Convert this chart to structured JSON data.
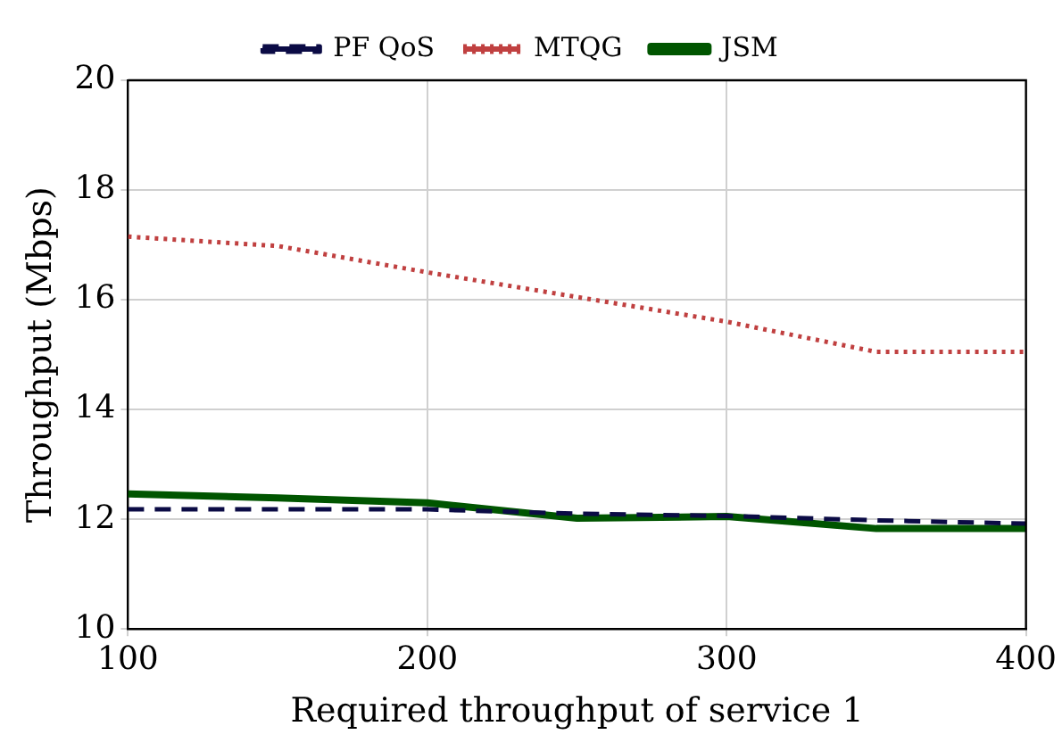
{
  "chart_data": {
    "type": "line",
    "xlabel": "Required throughput of service 1",
    "ylabel": "Throughput (Mbps)",
    "x": [
      100,
      150,
      200,
      250,
      300,
      350,
      400
    ],
    "series": [
      {
        "name": "PF QoS",
        "color": "#0b0b45",
        "line_style": "dashed",
        "values": [
          12.18,
          12.18,
          12.18,
          12.1,
          12.06,
          11.98,
          11.92
        ]
      },
      {
        "name": "MTQG",
        "color": "#c04040",
        "line_style": "dotted",
        "values": [
          17.15,
          16.98,
          16.5,
          16.05,
          15.6,
          15.05,
          15.05
        ]
      },
      {
        "name": "JSM",
        "color": "#005500",
        "line_style": "solid",
        "values": [
          12.46,
          12.39,
          12.3,
          12.02,
          12.05,
          11.83,
          11.83
        ]
      }
    ],
    "xlim": [
      100,
      400
    ],
    "xticks": [
      100,
      200,
      300,
      400
    ],
    "ylim": [
      10,
      20
    ],
    "yticks": [
      10,
      12,
      14,
      16,
      18,
      20
    ],
    "grid": true,
    "legend": "top",
    "marker": "none"
  }
}
